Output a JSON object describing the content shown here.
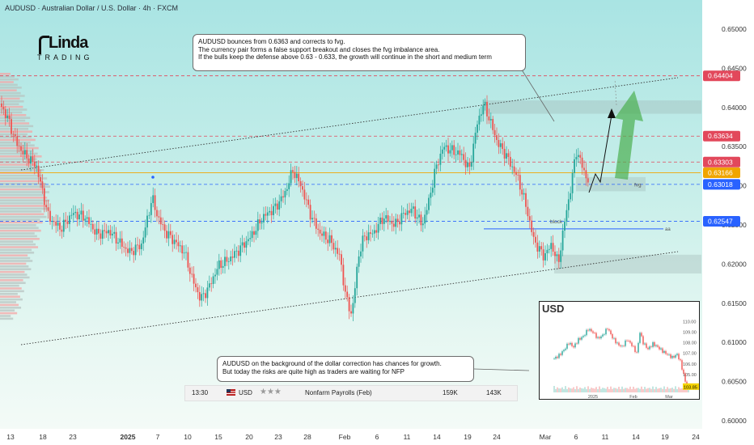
{
  "header": {
    "title": "AUDUSD · Australian Dollar / U.S. Dollar · 4h · FXCM"
  },
  "logo": {
    "top": "Linda",
    "bottom": "TRADING"
  },
  "annotations": {
    "top_box": [
      "AUDUSD bounces from 0.6363 and corrects to fvg.",
      "The currency pair forms a false support breakout and closes the fvg imbalance area.",
      "If the bulls keep the defense above 0.63 - 0.633, the growth will continue in the short and medium term"
    ],
    "bottom_box": [
      "AUDUSD on the background of the dollar correction has chances for growth.",
      "But today the risks are quite high as traders are waiting for NFP"
    ]
  },
  "economic_event": {
    "time": "13:30",
    "currency": "USD",
    "impact": "★★★",
    "event": "Nonfarm Payrolls (Feb)",
    "actual": "159K",
    "forecast": "143K"
  },
  "chart_labels": {
    "fvg": "fvg",
    "block": "block",
    "aa": "aa"
  },
  "colors": {
    "up": "#26a69a",
    "down": "#ef5350",
    "level_red": "#e2485b",
    "level_blue": "#2962ff",
    "orange": "#f0a500",
    "channel": "#333333",
    "forecast_green": "#4caf50"
  },
  "chart_data": {
    "type": "candlestick",
    "symbol": "AUDUSD",
    "timeframe": "4h",
    "ylim": [
      0.6,
      0.652
    ],
    "y_ticks": [
      "0.65000",
      "0.64500",
      "0.64000",
      "0.63500",
      "0.63000",
      "0.62500",
      "0.62000",
      "0.61500",
      "0.61000",
      "0.60500",
      "0.60000"
    ],
    "x_ticks": [
      "13",
      "18",
      "23",
      "2025",
      "7",
      "10",
      "15",
      "20",
      "23",
      "28",
      "Feb",
      "6",
      "11",
      "14",
      "19",
      "24",
      "Mar",
      "6",
      "11",
      "14",
      "19",
      "24"
    ],
    "price_labels": [
      {
        "value": "0.64404",
        "price": 0.64404,
        "color": "#e2485b"
      },
      {
        "value": "0.63634",
        "price": 0.63634,
        "color": "#e2485b"
      },
      {
        "value": "0.63303",
        "price": 0.63303,
        "color": "#e2485b"
      },
      {
        "value": "0.63166",
        "price": 0.63166,
        "color": "#f0a500"
      },
      {
        "value": "0.63018",
        "price": 0.63018,
        "color": "#2962ff"
      },
      {
        "value": "0.62547",
        "price": 0.62547,
        "color": "#2962ff"
      }
    ],
    "close_path": [
      [
        0,
        0.6405
      ],
      [
        10,
        0.6385
      ],
      [
        20,
        0.6355
      ],
      [
        30,
        0.634
      ],
      [
        45,
        0.6325
      ],
      [
        60,
        0.626
      ],
      [
        75,
        0.6245
      ],
      [
        90,
        0.6265
      ],
      [
        105,
        0.626
      ],
      [
        120,
        0.6238
      ],
      [
        135,
        0.6242
      ],
      [
        150,
        0.6225
      ],
      [
        160,
        0.6215
      ],
      [
        175,
        0.6225
      ],
      [
        188,
        0.6285
      ],
      [
        195,
        0.626
      ],
      [
        205,
        0.624
      ],
      [
        215,
        0.623
      ],
      [
        228,
        0.6215
      ],
      [
        238,
        0.618
      ],
      [
        248,
        0.6155
      ],
      [
        258,
        0.617
      ],
      [
        270,
        0.6198
      ],
      [
        282,
        0.6205
      ],
      [
        295,
        0.6218
      ],
      [
        310,
        0.6235
      ],
      [
        325,
        0.626
      ],
      [
        340,
        0.6272
      ],
      [
        352,
        0.629
      ],
      [
        362,
        0.632
      ],
      [
        372,
        0.63
      ],
      [
        385,
        0.626
      ],
      [
        395,
        0.624
      ],
      [
        408,
        0.623
      ],
      [
        420,
        0.621
      ],
      [
        428,
        0.6155
      ],
      [
        435,
        0.6135
      ],
      [
        443,
        0.621
      ],
      [
        450,
        0.6235
      ],
      [
        462,
        0.624
      ],
      [
        474,
        0.626
      ],
      [
        488,
        0.625
      ],
      [
        500,
        0.6265
      ],
      [
        510,
        0.627
      ],
      [
        522,
        0.625
      ],
      [
        530,
        0.628
      ],
      [
        538,
        0.632
      ],
      [
        548,
        0.635
      ],
      [
        558,
        0.6345
      ],
      [
        570,
        0.634
      ],
      [
        580,
        0.632
      ],
      [
        590,
        0.638
      ],
      [
        598,
        0.6405
      ],
      [
        605,
        0.6385
      ],
      [
        615,
        0.6355
      ],
      [
        625,
        0.634
      ],
      [
        640,
        0.631
      ],
      [
        650,
        0.6275
      ],
      [
        660,
        0.623
      ],
      [
        672,
        0.621
      ],
      [
        682,
        0.6225
      ],
      [
        690,
        0.62
      ],
      [
        698,
        0.6255
      ],
      [
        706,
        0.63
      ],
      [
        712,
        0.6345
      ],
      [
        718,
        0.633
      ],
      [
        725,
        0.631
      ],
      [
        730,
        0.6298
      ]
    ],
    "levels": [
      {
        "price": 0.64404,
        "style": "dash",
        "color": "#e2485b"
      },
      {
        "price": 0.63634,
        "style": "dash",
        "color": "#e2485b"
      },
      {
        "price": 0.63303,
        "style": "dash",
        "color": "#e2485b"
      },
      {
        "price": 0.63166,
        "style": "solid",
        "color": "#f0a500"
      },
      {
        "price": 0.63018,
        "style": "dash",
        "color": "#2962ff"
      },
      {
        "price": 0.62547,
        "style": "dash",
        "color": "#2962ff"
      }
    ],
    "inset": {
      "title": "USD",
      "y_ticks": [
        "110.00",
        "109.00",
        "108.00",
        "107.00",
        "106.00",
        "105.00",
        "104.00"
      ],
      "x_ticks": [
        "2025",
        "Feb",
        "Mar"
      ],
      "last_value": "103.85",
      "ylim": [
        103.3,
        110.5
      ],
      "close_path": [
        [
          0,
          106.5
        ],
        [
          6,
          106.8
        ],
        [
          12,
          107.3
        ],
        [
          18,
          108.0
        ],
        [
          24,
          107.6
        ],
        [
          30,
          108.3
        ],
        [
          36,
          108.6
        ],
        [
          42,
          109.3
        ],
        [
          48,
          109.0
        ],
        [
          54,
          108.4
        ],
        [
          60,
          108.7
        ],
        [
          66,
          109.4
        ],
        [
          72,
          108.5
        ],
        [
          78,
          107.9
        ],
        [
          84,
          107.6
        ],
        [
          90,
          108.3
        ],
        [
          96,
          107.8
        ],
        [
          102,
          107.0
        ],
        [
          106,
          109.0
        ],
        [
          110,
          108.0
        ],
        [
          116,
          107.4
        ],
        [
          122,
          107.9
        ],
        [
          128,
          107.6
        ],
        [
          134,
          107.2
        ],
        [
          140,
          106.9
        ],
        [
          146,
          106.6
        ],
        [
          152,
          106.9
        ],
        [
          156,
          106.2
        ],
        [
          160,
          105.0
        ],
        [
          163,
          104.0
        ],
        [
          166,
          103.85
        ]
      ]
    }
  }
}
